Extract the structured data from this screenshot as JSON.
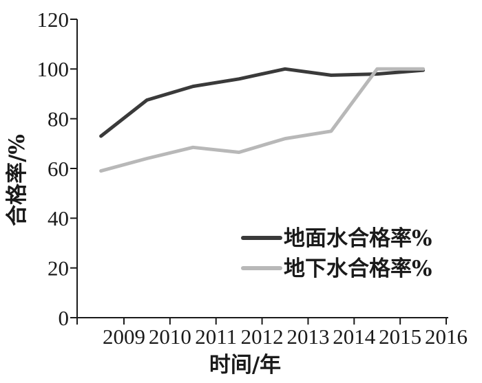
{
  "chart_data": {
    "type": "line",
    "title": "",
    "xlabel": "时间/年",
    "ylabel": "合格率/%",
    "x_tick_labels": [
      "2009",
      "2010",
      "2011",
      "2012",
      "2013",
      "2014",
      "2015",
      "2016"
    ],
    "x_points": [
      2008.5,
      2009.5,
      2010.5,
      2011.5,
      2012.5,
      2013.5,
      2014.5,
      2015.5
    ],
    "ylim": [
      0,
      120
    ],
    "ytick_step": 20,
    "grid": false,
    "legend_position": "inside-lower-right",
    "axis_color": "#1a1a1a",
    "series": [
      {
        "name": "地面水合格率%",
        "color": "#3a3a3a",
        "values": [
          73,
          87.5,
          93,
          96,
          100,
          97.5,
          98,
          99.5
        ]
      },
      {
        "name": "地下水合格率%",
        "color": "#b8b8b8",
        "values": [
          59,
          64,
          68.5,
          66.5,
          72,
          75,
          100,
          100
        ]
      }
    ]
  }
}
